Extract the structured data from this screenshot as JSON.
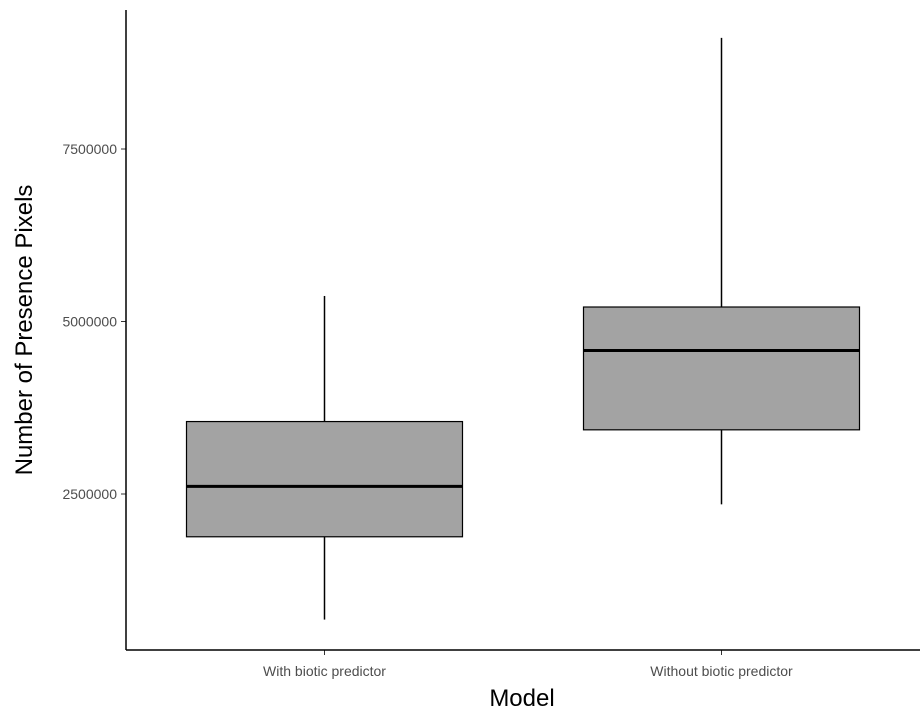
{
  "chart_data": {
    "type": "box",
    "xlabel": "Model",
    "ylabel": "Number of Presence Pixels",
    "categories": [
      "With biotic predictor",
      "Without biotic predictor"
    ],
    "boxes": [
      {
        "category": "With biotic predictor",
        "whisker_low": 680000,
        "q1": 1880000,
        "median": 2610000,
        "q3": 3550000,
        "whisker_high": 5370000
      },
      {
        "category": "Without biotic predictor",
        "whisker_low": 2350000,
        "q1": 3430000,
        "median": 4580000,
        "q3": 5210000,
        "whisker_high": 9110000
      }
    ],
    "yticks": [
      2500000,
      5000000,
      7500000
    ],
    "ytick_labels": [
      "2500000",
      "5000000",
      "7500000"
    ],
    "ylim": [
      150000,
      9600000
    ],
    "grid": false,
    "colors": {
      "box_fill": "#a3a3a3",
      "line": "#000000",
      "tick_text": "#4d4d4d"
    }
  }
}
